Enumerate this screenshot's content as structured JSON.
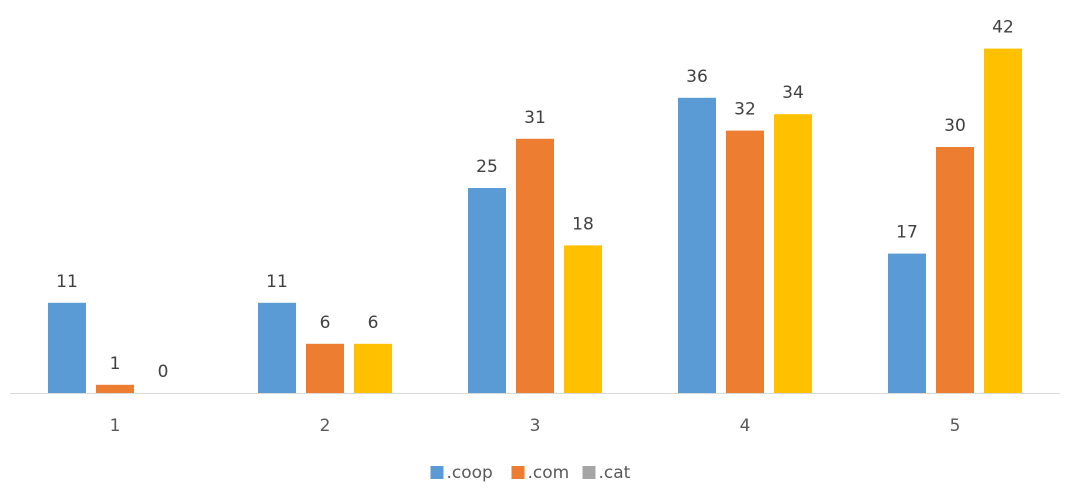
{
  "chart_data": {
    "type": "bar",
    "title": "",
    "xlabel": "",
    "ylabel": "",
    "categories": [
      "1",
      "2",
      "3",
      "4",
      "5"
    ],
    "series": [
      {
        "name": ".coop",
        "color": "#5B9BD5",
        "values": [
          11,
          11,
          25,
          36,
          17
        ]
      },
      {
        "name": ".com",
        "color": "#ED7D31",
        "values": [
          1,
          6,
          31,
          32,
          30
        ]
      },
      {
        "name": ".cat",
        "color": "#A5A5A5",
        "values": [
          0,
          6,
          18,
          34,
          42
        ]
      }
    ],
    "bar_colors_override": {
      "series_index": 2,
      "color": "#FFC000",
      "from_category_index": 1
    },
    "ylim": [
      0,
      42
    ],
    "grid": false,
    "data_labels": true,
    "legend": "bottom-center"
  }
}
